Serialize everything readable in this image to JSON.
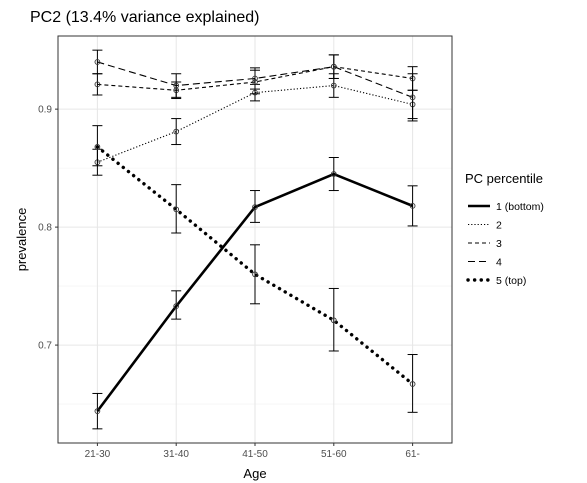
{
  "chart_data": {
    "type": "line",
    "title": "PC2 (13.4% variance explained)",
    "xlabel": "Age",
    "ylabel": "prevalence",
    "categories": [
      "21-30",
      "31-40",
      "41-50",
      "51-60",
      "61-"
    ],
    "yticks": [
      0.7,
      0.8,
      0.9
    ],
    "ylim": [
      0.617,
      0.962
    ],
    "grid": true,
    "legend": {
      "title": "PC percentile",
      "placement": "right"
    },
    "series": [
      {
        "name": "1 (bottom)",
        "dash": "solid",
        "values": [
          0.644,
          0.733,
          0.817,
          0.845,
          0.818
        ],
        "lower": [
          0.629,
          0.722,
          0.804,
          0.831,
          0.801
        ],
        "upper": [
          0.659,
          0.746,
          0.831,
          0.859,
          0.835
        ]
      },
      {
        "name": "2",
        "dash": "dotted",
        "values": [
          0.855,
          0.881,
          0.914,
          0.92,
          0.904
        ],
        "lower": [
          0.844,
          0.87,
          0.907,
          0.91,
          0.892
        ],
        "upper": [
          0.866,
          0.892,
          0.921,
          0.93,
          0.916
        ]
      },
      {
        "name": "3",
        "dash": "dashed",
        "values": [
          0.921,
          0.916,
          0.923,
          0.936,
          0.926
        ],
        "lower": [
          0.912,
          0.909,
          0.913,
          0.926,
          0.916
        ],
        "upper": [
          0.93,
          0.923,
          0.933,
          0.946,
          0.936
        ]
      },
      {
        "name": "4",
        "dash": "longdash",
        "values": [
          0.94,
          0.92,
          0.926,
          0.936,
          0.91
        ],
        "lower": [
          0.93,
          0.91,
          0.917,
          0.926,
          0.89
        ],
        "upper": [
          0.95,
          0.93,
          0.935,
          0.946,
          0.93
        ]
      },
      {
        "name": "5 (top)",
        "dash": "bigdot",
        "values": [
          0.868,
          0.815,
          0.76,
          0.721,
          0.667
        ],
        "lower": [
          0.852,
          0.795,
          0.735,
          0.695,
          0.643
        ],
        "upper": [
          0.886,
          0.836,
          0.785,
          0.748,
          0.692
        ]
      }
    ]
  }
}
